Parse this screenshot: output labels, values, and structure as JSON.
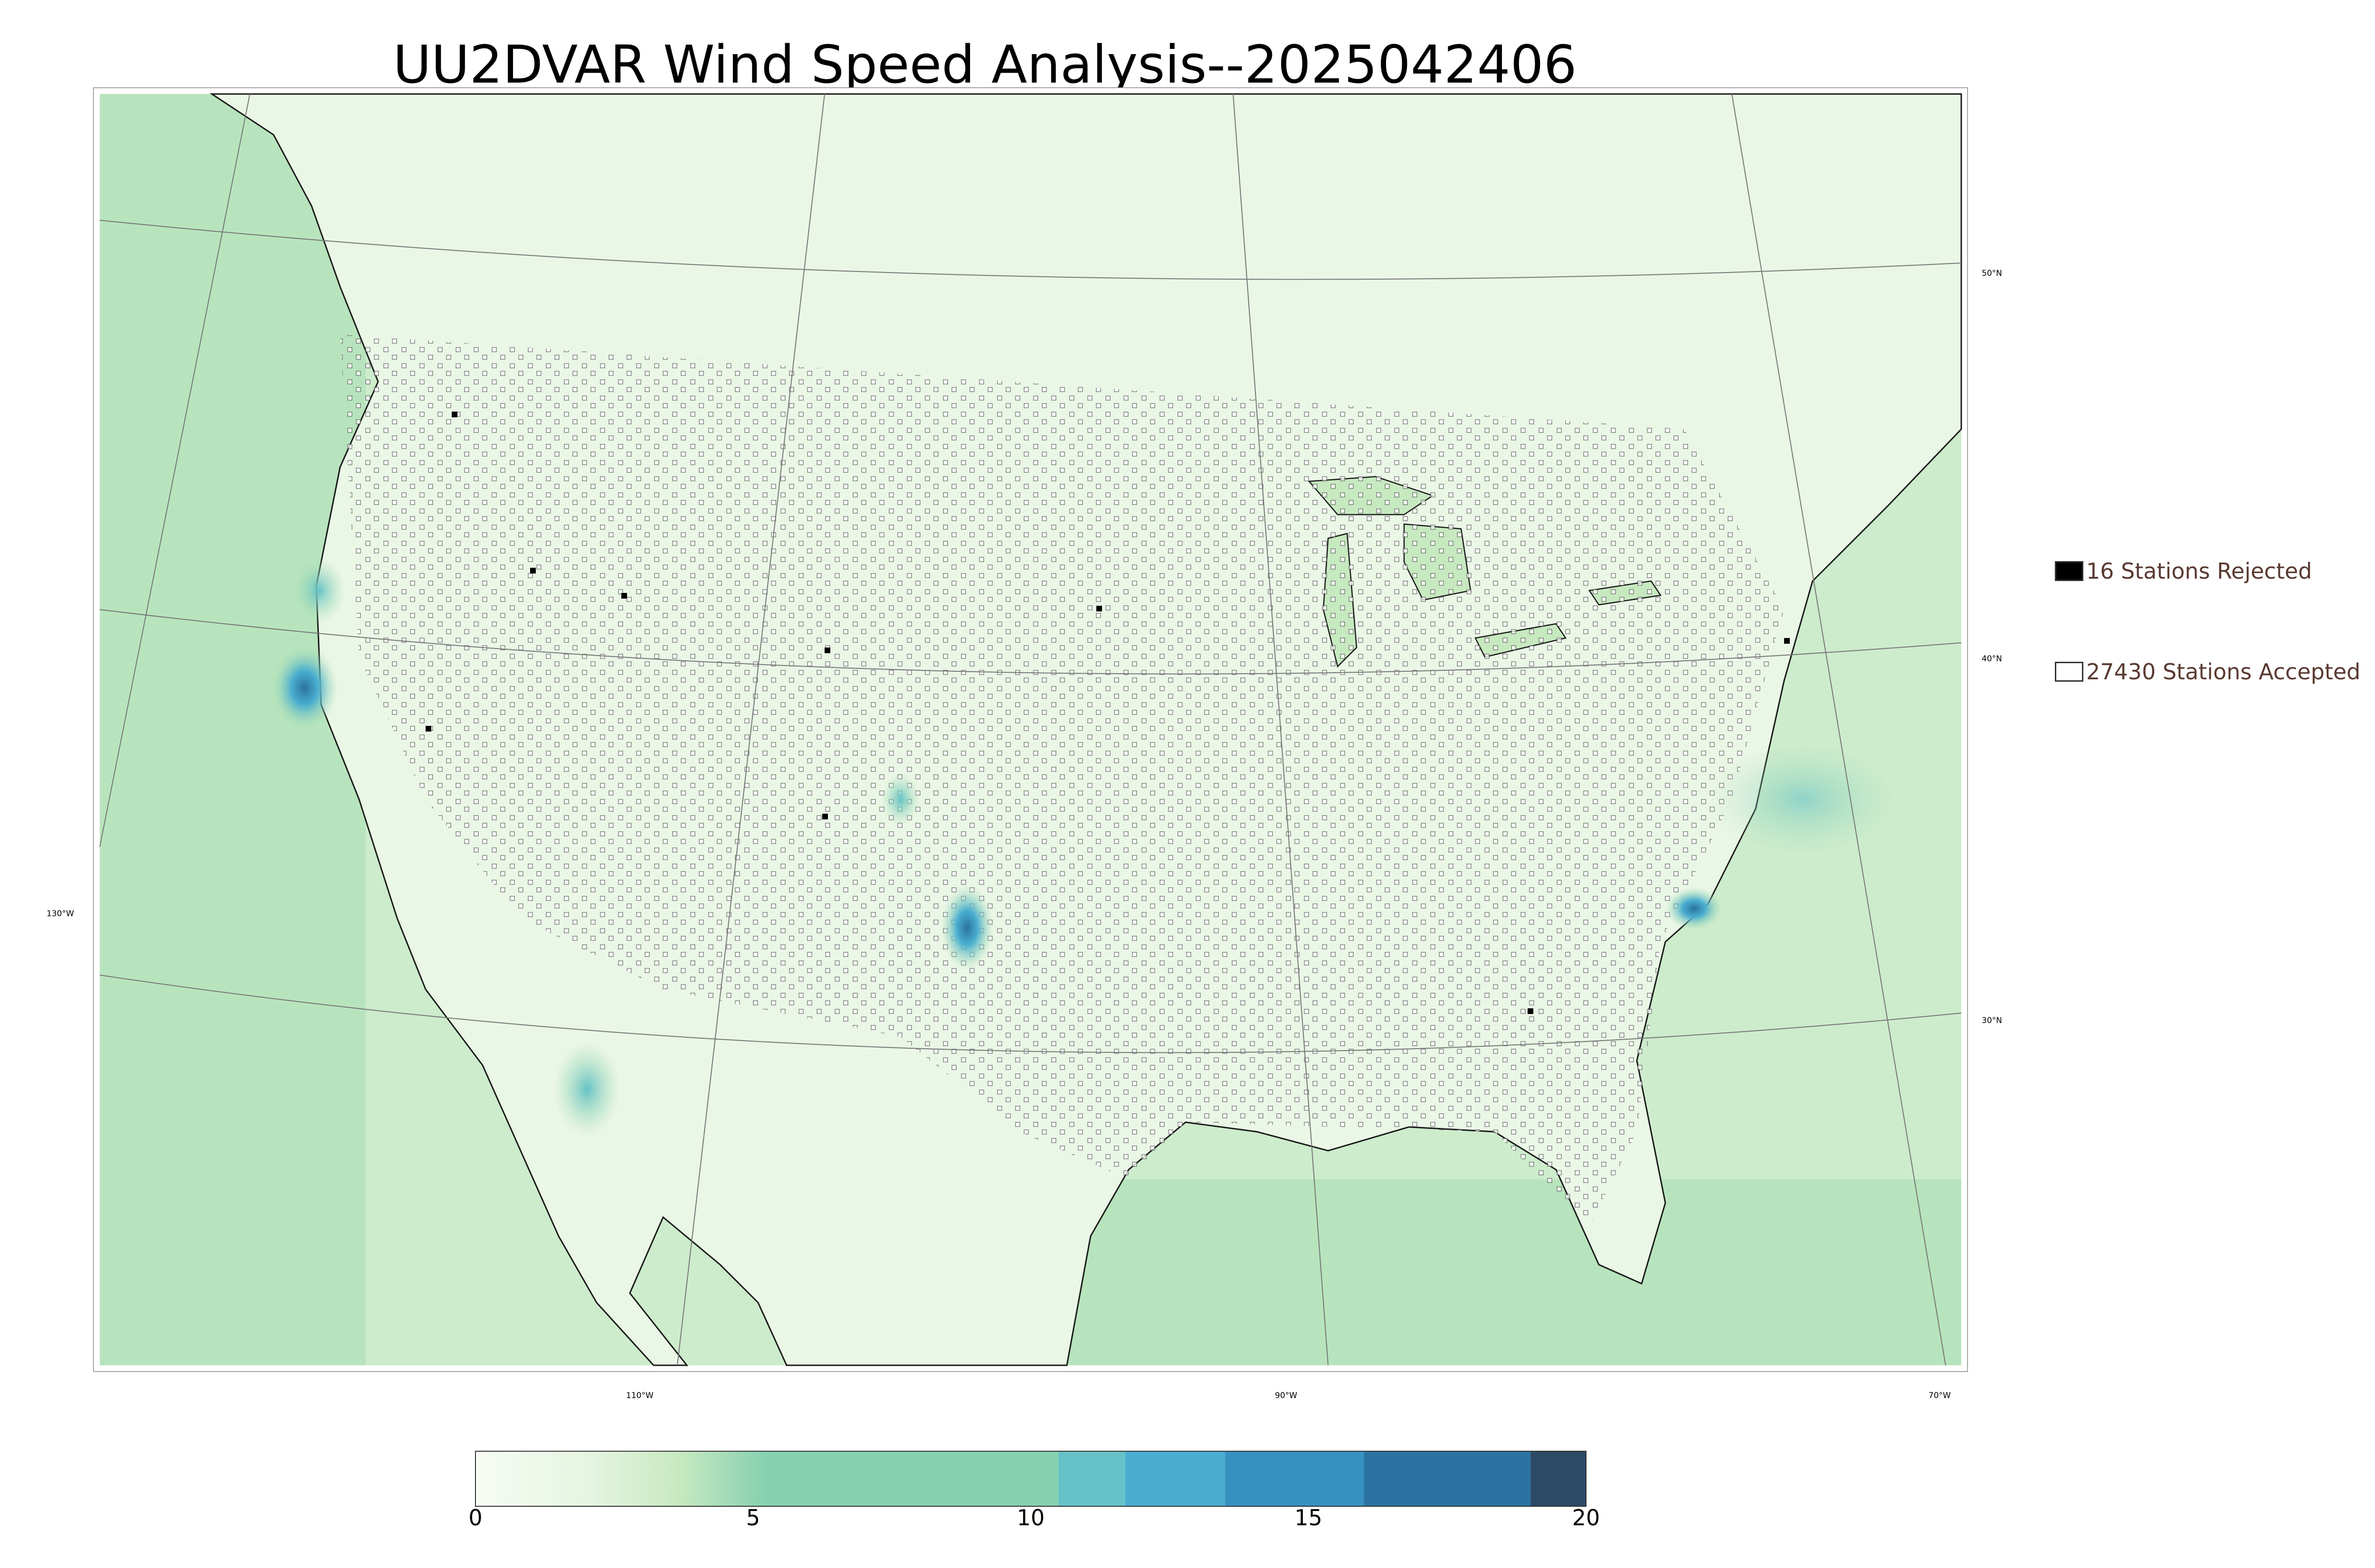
{
  "title": "UU2DVAR Wind Speed Analysis--2025042406",
  "legend": {
    "rejected_label": "16 Stations Rejected",
    "accepted_label": "27430 Stations Accepted",
    "rejected_color": "#000000",
    "accepted_color": "#ffffff"
  },
  "gridlines": {
    "lat_labels": [
      "50°N",
      "40°N",
      "30°N"
    ],
    "lon_labels": [
      "130°W",
      "110°W",
      "90°W",
      "70°W"
    ]
  },
  "colorbar": {
    "min": 0,
    "max": 20,
    "ticks": [
      "0",
      "5",
      "10",
      "15",
      "20"
    ],
    "colors": [
      "#f7fcf5",
      "#e5f5e0",
      "#c7e9c0",
      "#a8dfb0",
      "#86d0b0",
      "#66c2c8",
      "#4aaed0",
      "#3690c0",
      "#2b73a0",
      "#2c4a66"
    ],
    "bounds": [
      0,
      2,
      4,
      6,
      8,
      10.5,
      11.7,
      13.5,
      16,
      19,
      20
    ]
  },
  "map_colors": {
    "land_base": "#eaf6e6",
    "ocean_base": "#cdeccc",
    "coast": "#1a1a1a",
    "borders": "#555555"
  },
  "station_markers": {
    "accepted": "open-square",
    "rejected": "filled-square"
  }
}
